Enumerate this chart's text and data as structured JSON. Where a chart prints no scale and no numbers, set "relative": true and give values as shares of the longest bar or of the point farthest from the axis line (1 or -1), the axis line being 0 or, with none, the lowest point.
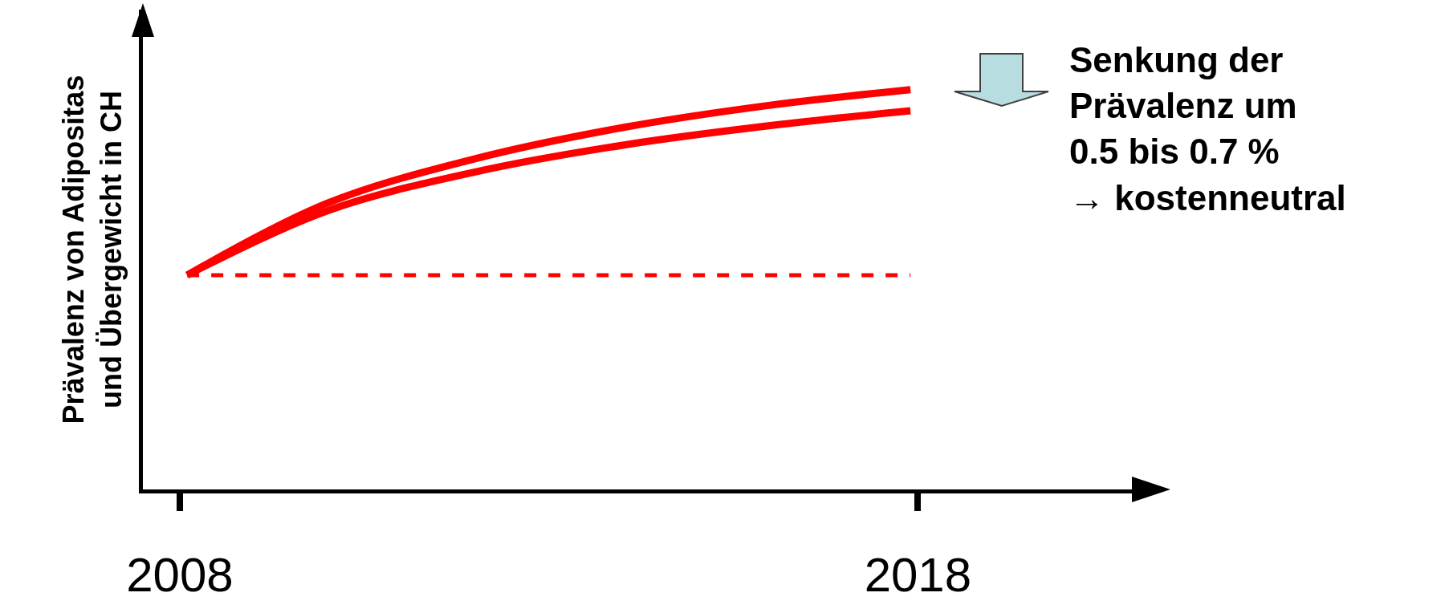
{
  "chart_data": {
    "type": "line",
    "relative": true,
    "ylabel": "Prävalenz von Adipositas\nund Übergewicht in CH",
    "xlim": [
      2007.5,
      2020.9
    ],
    "xticks": [
      2008,
      2018
    ],
    "grid": false,
    "marker": "none",
    "annotations": [
      "Senkung der\nPrävalenz um\n0.5 bis 0.7 %\n→ kostenneutral"
    ],
    "series": [
      {
        "color": "#ff0000",
        "line_style": "solid",
        "x": [
          2008.1,
          2010,
          2012,
          2014,
          2016,
          2017.9
        ],
        "values": [
          0.536,
          0.716,
          0.827,
          0.905,
          0.961,
          1
        ]
      },
      {
        "color": "#ff0000",
        "line_style": "solid",
        "x": [
          2008.1,
          2010,
          2012,
          2014,
          2016,
          2017.9
        ],
        "values": [
          0.536,
          0.697,
          0.794,
          0.861,
          0.91,
          0.947
        ]
      },
      {
        "color": "#ff0000",
        "line_style": "dashed",
        "x": [
          2008.1,
          2017.9
        ],
        "values": [
          0.536,
          0.536
        ]
      }
    ]
  }
}
